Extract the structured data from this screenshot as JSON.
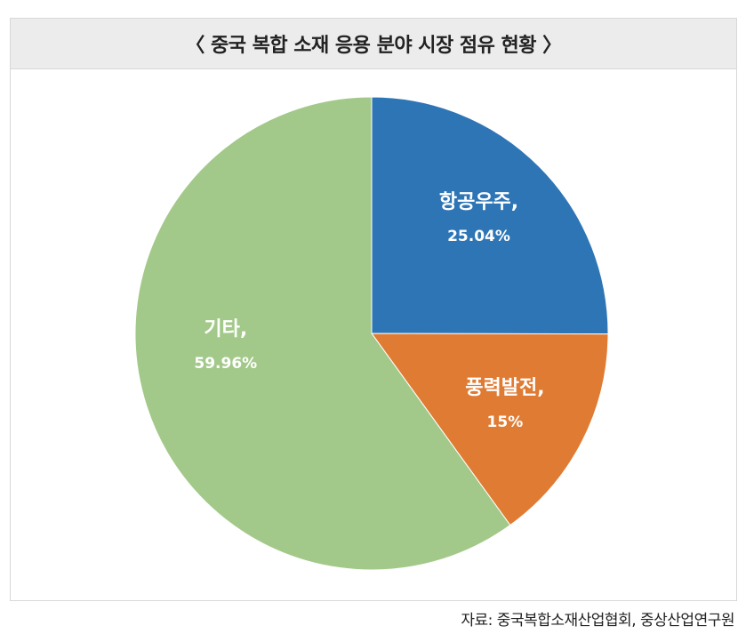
{
  "chart_data": {
    "type": "pie",
    "title": "〈 중국 복합 소재 응용 분야 시장 점유 현황 〉",
    "slices": [
      {
        "label": "항공우주,",
        "value": 25.04,
        "value_label": "25.04%",
        "color": "#2e75b6"
      },
      {
        "label": "풍력발전,",
        "value": 15,
        "value_label": "15%",
        "color": "#e07b33"
      },
      {
        "label": "기타,",
        "value": 59.96,
        "value_label": "59.96%",
        "color": "#a3c98a"
      }
    ],
    "start_angle": "12 o'clock",
    "direction": "clockwise",
    "legend": "none"
  },
  "source": "자료: 중국복합소재산업협회, 중상산업연구원"
}
